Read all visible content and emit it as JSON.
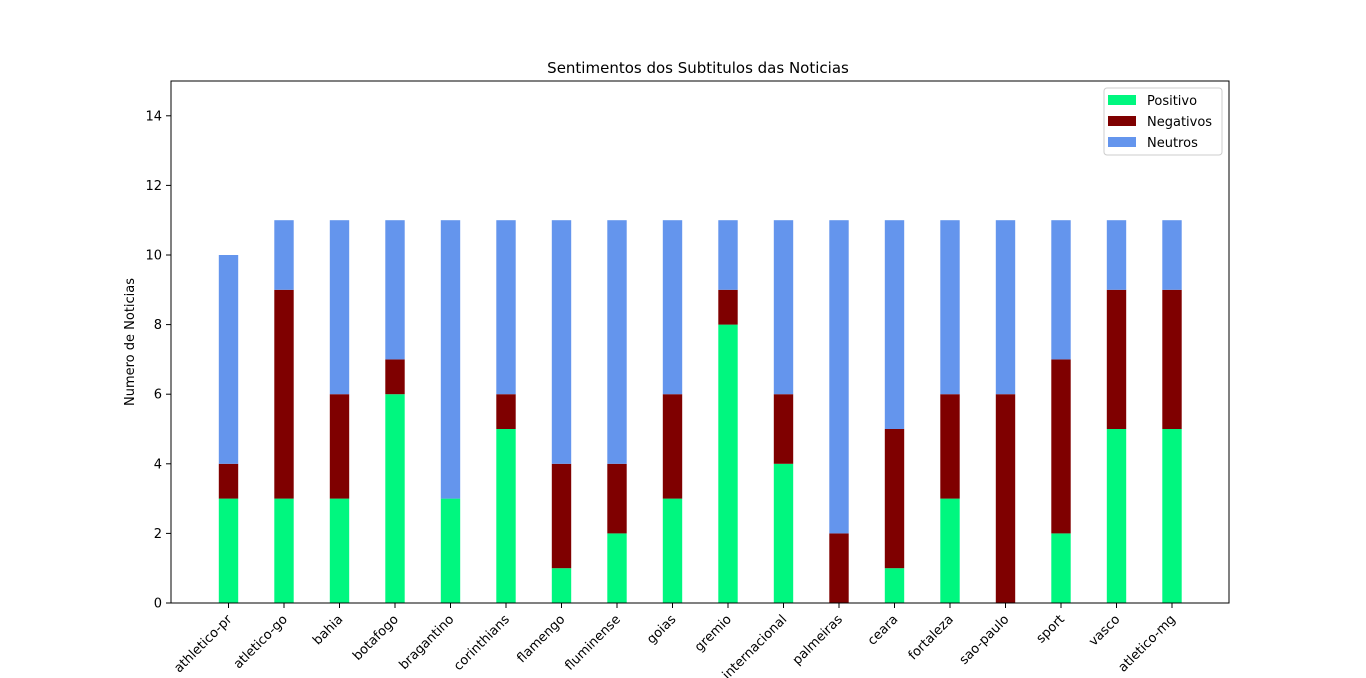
{
  "chart_data": {
    "type": "bar",
    "title": "Sentimentos dos Subtitulos das Noticias",
    "xlabel": "",
    "ylabel": "Numero de Noticias",
    "ylim": [
      0,
      15
    ],
    "yticks": [
      0,
      2,
      4,
      6,
      8,
      10,
      12,
      14
    ],
    "stacked": true,
    "grid": false,
    "legend_position": "top-right",
    "categories": [
      "athletico-pr",
      "atletico-go",
      "bahia",
      "botafogo",
      "bragantino",
      "corinthians",
      "flamengo",
      "fluminense",
      "goias",
      "gremio",
      "internacional",
      "palmeiras",
      "ceara",
      "fortaleza",
      "sao-paulo",
      "sport",
      "vasco",
      "atletico-mg"
    ],
    "series": [
      {
        "name": "Positivo",
        "color": "#00f77f",
        "values": [
          3,
          3,
          3,
          6,
          3,
          5,
          1,
          2,
          3,
          8,
          4,
          0,
          1,
          3,
          0,
          2,
          5,
          5
        ]
      },
      {
        "name": "Negativos",
        "color": "#7f0000",
        "values": [
          1,
          6,
          3,
          1,
          0,
          1,
          3,
          2,
          3,
          1,
          2,
          2,
          4,
          3,
          6,
          5,
          4,
          4
        ]
      },
      {
        "name": "Neutros",
        "color": "#6495ed",
        "values": [
          6,
          2,
          5,
          4,
          8,
          5,
          7,
          7,
          5,
          2,
          5,
          9,
          6,
          5,
          5,
          4,
          2,
          2
        ]
      }
    ]
  }
}
